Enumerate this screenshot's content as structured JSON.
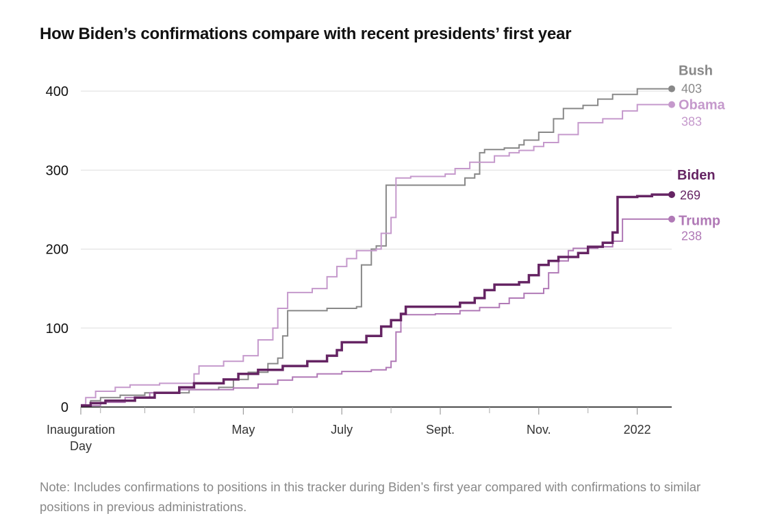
{
  "title": "How Biden’s confirmations compare with recent presidents’ first year",
  "note": "Note: Includes confirmations to positions in this tracker during Biden’s first year compared with confirmations to similar positions in previous administrations.",
  "chart_data": {
    "type": "line",
    "title": "How Biden’s confirmations compare with recent presidents’ first year",
    "x_unit": "month",
    "xlim": [
      0,
      12
    ],
    "ylim": [
      0,
      420
    ],
    "yticks": [
      0,
      100,
      200,
      300,
      400
    ],
    "xticks": [
      {
        "x": 0,
        "label": [
          "Inauguration",
          "Day"
        ]
      },
      {
        "x": 3.3,
        "label": [
          "May"
        ]
      },
      {
        "x": 5.3,
        "label": [
          "July"
        ]
      },
      {
        "x": 7.3,
        "label": [
          "Sept."
        ]
      },
      {
        "x": 9.3,
        "label": [
          "Nov."
        ]
      },
      {
        "x": 11.3,
        "label": [
          "2022"
        ]
      }
    ],
    "minor_ticks": [
      0.4,
      1.3,
      2.3,
      4.3,
      6.3,
      8.3,
      10.3
    ],
    "grid": true,
    "series": [
      {
        "name": "Bush",
        "final": "403",
        "color": "#888888",
        "width": 2,
        "style": "step",
        "points": [
          [
            0,
            2
          ],
          [
            0.2,
            8
          ],
          [
            0.4,
            12
          ],
          [
            0.8,
            15
          ],
          [
            1.3,
            18
          ],
          [
            2.2,
            22
          ],
          [
            2.8,
            25
          ],
          [
            3.1,
            35
          ],
          [
            3.4,
            44
          ],
          [
            3.8,
            55
          ],
          [
            4.0,
            62
          ],
          [
            4.1,
            90
          ],
          [
            4.2,
            122
          ],
          [
            5.0,
            125
          ],
          [
            5.6,
            127
          ],
          [
            5.7,
            180
          ],
          [
            5.9,
            200
          ],
          [
            6.0,
            204
          ],
          [
            6.2,
            281
          ],
          [
            7.5,
            281
          ],
          [
            7.8,
            290
          ],
          [
            8.0,
            295
          ],
          [
            8.1,
            322
          ],
          [
            8.2,
            326
          ],
          [
            8.6,
            328
          ],
          [
            8.9,
            332
          ],
          [
            9.0,
            338
          ],
          [
            9.3,
            348
          ],
          [
            9.6,
            365
          ],
          [
            9.8,
            378
          ],
          [
            10.2,
            382
          ],
          [
            10.5,
            390
          ],
          [
            10.8,
            396
          ],
          [
            11.3,
            403
          ],
          [
            12,
            403
          ]
        ]
      },
      {
        "name": "Obama",
        "final": "383",
        "color": "#c599cc",
        "width": 2,
        "style": "step",
        "points": [
          [
            0,
            3
          ],
          [
            0.1,
            12
          ],
          [
            0.3,
            20
          ],
          [
            0.7,
            25
          ],
          [
            1.0,
            28
          ],
          [
            1.6,
            30
          ],
          [
            2.3,
            42
          ],
          [
            2.4,
            52
          ],
          [
            2.9,
            58
          ],
          [
            3.3,
            65
          ],
          [
            3.6,
            85
          ],
          [
            3.9,
            100
          ],
          [
            4.0,
            125
          ],
          [
            4.2,
            145
          ],
          [
            4.7,
            150
          ],
          [
            5.0,
            165
          ],
          [
            5.2,
            178
          ],
          [
            5.4,
            188
          ],
          [
            5.6,
            198
          ],
          [
            6.0,
            200
          ],
          [
            6.1,
            220
          ],
          [
            6.3,
            240
          ],
          [
            6.4,
            290
          ],
          [
            6.7,
            292
          ],
          [
            7.4,
            295
          ],
          [
            7.6,
            302
          ],
          [
            7.9,
            310
          ],
          [
            8.4,
            318
          ],
          [
            8.7,
            322
          ],
          [
            8.9,
            325
          ],
          [
            9.2,
            330
          ],
          [
            9.4,
            335
          ],
          [
            9.7,
            345
          ],
          [
            10.1,
            360
          ],
          [
            10.6,
            365
          ],
          [
            11.0,
            375
          ],
          [
            11.3,
            383
          ],
          [
            12,
            383
          ]
        ]
      },
      {
        "name": "Biden",
        "final": "269",
        "color": "#652463",
        "width": 3.5,
        "style": "step",
        "points": [
          [
            0,
            2
          ],
          [
            0.2,
            5
          ],
          [
            0.5,
            8
          ],
          [
            1.1,
            12
          ],
          [
            1.5,
            18
          ],
          [
            2.0,
            25
          ],
          [
            2.3,
            30
          ],
          [
            2.9,
            35
          ],
          [
            3.2,
            42
          ],
          [
            3.6,
            47
          ],
          [
            4.1,
            52
          ],
          [
            4.6,
            58
          ],
          [
            5.0,
            65
          ],
          [
            5.2,
            72
          ],
          [
            5.3,
            82
          ],
          [
            5.8,
            90
          ],
          [
            6.1,
            102
          ],
          [
            6.3,
            110
          ],
          [
            6.5,
            118
          ],
          [
            6.6,
            127
          ],
          [
            7.7,
            132
          ],
          [
            8.0,
            138
          ],
          [
            8.2,
            148
          ],
          [
            8.4,
            155
          ],
          [
            8.9,
            158
          ],
          [
            9.1,
            167
          ],
          [
            9.3,
            180
          ],
          [
            9.5,
            185
          ],
          [
            9.7,
            190
          ],
          [
            10.1,
            195
          ],
          [
            10.3,
            203
          ],
          [
            10.6,
            208
          ],
          [
            10.8,
            221
          ],
          [
            10.9,
            266
          ],
          [
            11.3,
            267
          ],
          [
            11.6,
            269
          ],
          [
            12,
            269
          ]
        ]
      },
      {
        "name": "Trump",
        "final": "238",
        "color": "#b079b6",
        "width": 2,
        "style": "step",
        "points": [
          [
            0,
            2
          ],
          [
            0.4,
            6
          ],
          [
            0.9,
            12
          ],
          [
            1.4,
            18
          ],
          [
            2.0,
            22
          ],
          [
            3.1,
            24
          ],
          [
            3.6,
            29
          ],
          [
            4.0,
            34
          ],
          [
            4.3,
            38
          ],
          [
            4.8,
            42
          ],
          [
            5.3,
            45
          ],
          [
            5.9,
            47
          ],
          [
            6.2,
            50
          ],
          [
            6.3,
            58
          ],
          [
            6.4,
            95
          ],
          [
            6.5,
            117
          ],
          [
            7.2,
            118
          ],
          [
            7.7,
            122
          ],
          [
            8.1,
            126
          ],
          [
            8.5,
            131
          ],
          [
            8.7,
            138
          ],
          [
            9.0,
            144
          ],
          [
            9.4,
            150
          ],
          [
            9.5,
            170
          ],
          [
            9.7,
            185
          ],
          [
            9.9,
            198
          ],
          [
            10.0,
            201
          ],
          [
            10.5,
            203
          ],
          [
            10.8,
            210
          ],
          [
            11.0,
            238
          ],
          [
            12,
            238
          ]
        ]
      }
    ],
    "labels": [
      {
        "series": "Bush",
        "name": "Bush",
        "value": "403"
      },
      {
        "series": "Obama",
        "name": "Obama",
        "value": "383"
      },
      {
        "series": "Biden",
        "name": "Biden",
        "value": "269"
      },
      {
        "series": "Trump",
        "name": "Trump",
        "value": "238"
      }
    ]
  }
}
